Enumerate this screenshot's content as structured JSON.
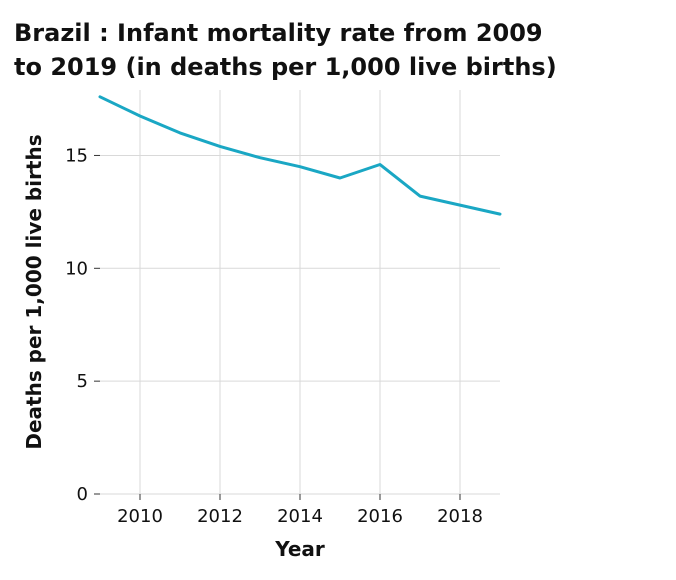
{
  "chart_data": {
    "type": "line",
    "title_lines": [
      "Brazil : Infant mortality rate from 2009",
      "to 2019 (in deaths per 1,000 live births)"
    ],
    "xlabel": "Year",
    "ylabel": "Deaths per 1,000 live births",
    "xlim": [
      2009,
      2019
    ],
    "ylim": [
      0,
      17.9
    ],
    "xticks": [
      2010,
      2012,
      2014,
      2016,
      2018
    ],
    "yticks": [
      0,
      5,
      10,
      15
    ],
    "grid": true,
    "line_color": "#1aa7c4",
    "x": [
      2009,
      2010,
      2011,
      2012,
      2013,
      2014,
      2015,
      2016,
      2017,
      2018,
      2019
    ],
    "y": [
      17.6,
      16.75,
      16.0,
      15.4,
      14.9,
      14.5,
      14.0,
      14.6,
      13.2,
      12.8,
      12.4
    ]
  }
}
